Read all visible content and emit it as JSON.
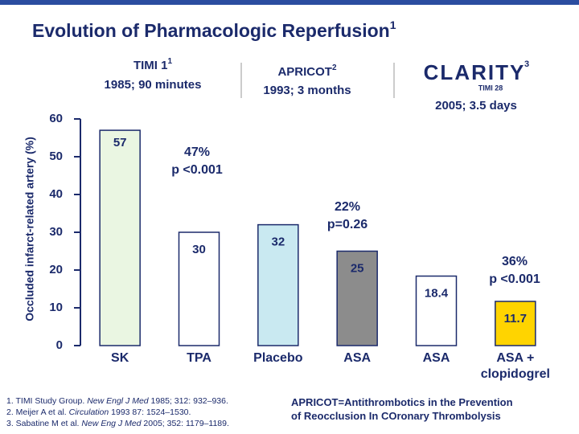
{
  "chart_data": {
    "type": "bar",
    "title": "Evolution of Pharmacologic Reperfusion",
    "title_sup": "1",
    "y_label": "Occluded infarct-related artery (%)",
    "categories": [
      "SK",
      "TPA",
      "Placebo",
      "ASA",
      "ASA",
      "ASA + clopidogrel"
    ],
    "values": [
      57,
      30,
      32,
      25,
      18.4,
      11.7
    ],
    "colors": [
      "#eaf6e2",
      "#ffffff",
      "#c9e9f1",
      "#8c8c8c",
      "#ffffff",
      "#ffd400"
    ],
    "ylim": [
      0,
      60
    ],
    "yticks": [
      0,
      10,
      20,
      30,
      40,
      50,
      60
    ],
    "groups": [
      {
        "name": "TIMI 1",
        "sup": "1",
        "period": "1985; 90 minutes"
      },
      {
        "name": "APRICOT",
        "sup": "2",
        "period": "1993; 3 months"
      },
      {
        "logo": "CLARITY",
        "logo_sub": "TIMI 28",
        "sup": "3",
        "period": "2005; 3.5 days"
      }
    ],
    "comparisons": [
      {
        "lines": [
          "47%",
          "p <0.001"
        ]
      },
      {
        "lines": [
          "22%",
          "p=0.26"
        ]
      },
      {
        "lines": [
          "36%",
          "p <0.001"
        ]
      }
    ]
  },
  "footnotes": [
    [
      "1. TIMI Study Group. ",
      "New Engl J Med",
      " 1985; 312: 932–936."
    ],
    [
      "2. Meijer A et al. ",
      "Circulation",
      " 1993 87: 1524–1530."
    ],
    [
      "3. Sabatine M et al. ",
      "New Eng J Med",
      " 2005; 352: 1179–1189."
    ]
  ],
  "note": [
    "APRICOT=Antithrombotics in the Prevention",
    "of Reocclusion In COronary Thrombolysis"
  ]
}
